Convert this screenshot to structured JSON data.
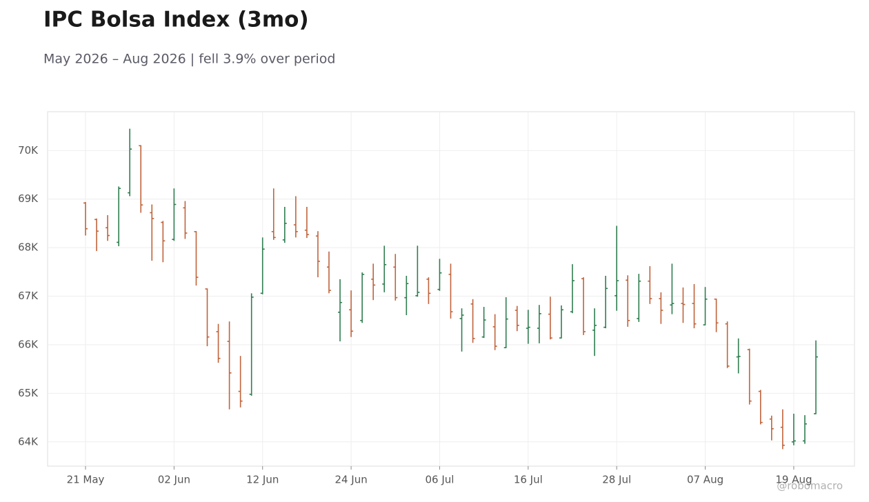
{
  "chart_data": {
    "type": "ohlc",
    "title": "IPC Bolsa Index (3mo)",
    "subtitle": "May 2026 – Aug 2026 | fell 3.9% over period",
    "watermark": "@robomacro",
    "up_color": "#2e7d4f",
    "down_color": "#c0623a",
    "grid": true,
    "ylim": [
      63500,
      70800
    ],
    "yticks": [
      {
        "value": 64000,
        "label": "64K"
      },
      {
        "value": 65000,
        "label": "65K"
      },
      {
        "value": 66000,
        "label": "66K"
      },
      {
        "value": 67000,
        "label": "67K"
      },
      {
        "value": 68000,
        "label": "68K"
      },
      {
        "value": 69000,
        "label": "69K"
      },
      {
        "value": 70000,
        "label": "70K"
      }
    ],
    "categories": [
      "21 May",
      null,
      null,
      null,
      null,
      null,
      null,
      null,
      "02 Jun",
      null,
      null,
      null,
      null,
      null,
      null,
      null,
      "12 Jun",
      null,
      null,
      null,
      null,
      null,
      null,
      null,
      "24 Jun",
      null,
      null,
      null,
      null,
      null,
      null,
      null,
      "06 Jul",
      null,
      null,
      null,
      null,
      null,
      null,
      null,
      "16 Jul",
      null,
      null,
      null,
      null,
      null,
      null,
      null,
      "28 Jul",
      null,
      null,
      null,
      null,
      null,
      null,
      null,
      "07 Aug",
      null,
      null,
      null,
      null,
      null,
      null,
      null,
      "19 Aug",
      null,
      null
    ],
    "open": [
      68920,
      68580,
      68410,
      68110,
      69130,
      70100,
      68720,
      68520,
      68170,
      68820,
      68330,
      67150,
      66270,
      66070,
      65040,
      64980,
      67060,
      68330,
      68160,
      68470,
      68360,
      68240,
      67600,
      66670,
      66720,
      66500,
      67350,
      67250,
      67600,
      66970,
      67010,
      67350,
      67140,
      67450,
      66540,
      66840,
      66160,
      66370,
      65940,
      66710,
      66340,
      66340,
      66630,
      66140,
      66680,
      67360,
      66300,
      66360,
      67010,
      67330,
      66540,
      67310,
      66950,
      66820,
      66850,
      66850,
      66410,
      66940,
      66430,
      65750,
      65900,
      65040,
      64470,
      64300,
      64000,
      64020,
      64580
    ],
    "high": [
      68940,
      68600,
      68670,
      69260,
      70450,
      70110,
      68890,
      68550,
      69220,
      68960,
      68340,
      67160,
      66430,
      66480,
      65770,
      67060,
      68210,
      69220,
      68840,
      69060,
      68840,
      68340,
      67920,
      67350,
      67120,
      67490,
      67670,
      68040,
      67870,
      67420,
      68040,
      67390,
      67770,
      67670,
      66750,
      66940,
      66780,
      66630,
      66980,
      66800,
      66720,
      66820,
      66990,
      66810,
      67660,
      67390,
      66750,
      67420,
      68450,
      67430,
      67460,
      67620,
      67080,
      67670,
      67180,
      67250,
      67190,
      66950,
      66480,
      66130,
      65920,
      65070,
      64540,
      64670,
      64580,
      64550,
      66090
    ],
    "low": [
      68250,
      67930,
      68140,
      68030,
      69060,
      68720,
      67730,
      67700,
      68140,
      68180,
      67220,
      65970,
      65630,
      64670,
      64710,
      64950,
      67040,
      68160,
      68100,
      68210,
      68200,
      67390,
      67060,
      66070,
      66160,
      66450,
      66920,
      67080,
      66910,
      66610,
      66990,
      66840,
      67110,
      66540,
      65860,
      66040,
      66140,
      65890,
      65930,
      66280,
      66020,
      66030,
      66110,
      66130,
      66650,
      66200,
      65770,
      66340,
      66700,
      66370,
      66470,
      66840,
      66430,
      66630,
      66450,
      66340,
      66400,
      66260,
      65520,
      65410,
      64770,
      64360,
      64030,
      63850,
      63930,
      63960,
      64570
    ],
    "close": [
      68390,
      68340,
      68250,
      69220,
      70030,
      68880,
      68600,
      68140,
      68890,
      68300,
      67390,
      66160,
      65720,
      65420,
      64840,
      66980,
      67970,
      68210,
      68500,
      68330,
      68270,
      67720,
      67120,
      66870,
      66280,
      67450,
      67230,
      67650,
      66970,
      67260,
      67080,
      67060,
      67480,
      66680,
      66610,
      66130,
      66510,
      65970,
      66530,
      66400,
      66360,
      66640,
      66140,
      66720,
      67320,
      66270,
      66400,
      67160,
      67320,
      66500,
      67310,
      66950,
      66710,
      66850,
      66830,
      66430,
      66940,
      66450,
      65560,
      65760,
      64840,
      64400,
      64270,
      63930,
      64020,
      64370,
      65750
    ]
  }
}
